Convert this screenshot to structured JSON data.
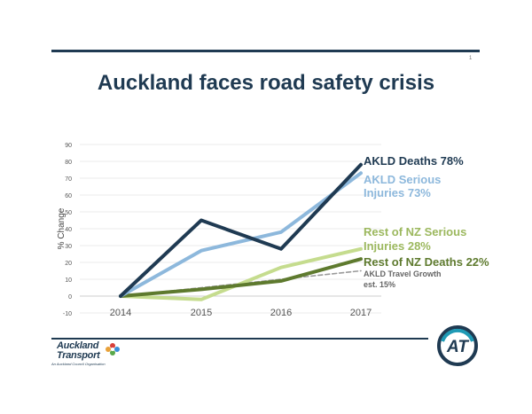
{
  "header": {
    "title": "Auckland faces road safety crisis",
    "page_number": "1"
  },
  "chart_data": {
    "type": "line",
    "categories": [
      "2014",
      "2015",
      "2016",
      "2017"
    ],
    "ylabel": "% Change",
    "xlabel": "",
    "ylim": [
      -10,
      90
    ],
    "yticks": [
      -10,
      0,
      10,
      20,
      30,
      40,
      50,
      60,
      70,
      80,
      90
    ],
    "grid": true,
    "series": [
      {
        "name": "AKLD Deaths 78%",
        "values": [
          0,
          45,
          28,
          78
        ],
        "color": "#1f3a52",
        "dashed": false
      },
      {
        "name": "AKLD Serious Injuries 73%",
        "values": [
          0,
          27,
          38,
          73
        ],
        "color": "#8db8dc",
        "dashed": false
      },
      {
        "name": "Rest of NZ Serious Injuries 28%",
        "values": [
          0,
          -2,
          17,
          28
        ],
        "color": "#c5dc8e",
        "dashed": false
      },
      {
        "name": "Rest of NZ Deaths 22%",
        "values": [
          0,
          4,
          9,
          22
        ],
        "color": "#5e7a2e",
        "dashed": false
      },
      {
        "name": "AKLD Travel Growth est. 15%",
        "values": [
          0,
          5,
          10,
          15
        ],
        "color": "#9a9a9a",
        "dashed": true
      }
    ]
  },
  "labels": {
    "akld_deaths": "AKLD Deaths 78%",
    "akld_serious_1": "AKLD Serious",
    "akld_serious_2": "Injuries 73%",
    "nz_serious_1": "Rest of NZ Serious",
    "nz_serious_2": "Injuries 28%",
    "nz_deaths": "Rest of NZ Deaths 22%",
    "travel_1": "AKLD Travel Growth",
    "travel_2": "est. 15%"
  },
  "footer": {
    "logo_line1": "Auckland",
    "logo_line2": "Transport",
    "logo_sub": "An Auckland Council Organisation",
    "at_logo_text": "AT"
  },
  "colors": {
    "navy": "#1f3a52",
    "light_blue": "#8db8dc",
    "light_green": "#c5dc8e",
    "dark_green": "#5e7a2e",
    "gray": "#9a9a9a"
  }
}
